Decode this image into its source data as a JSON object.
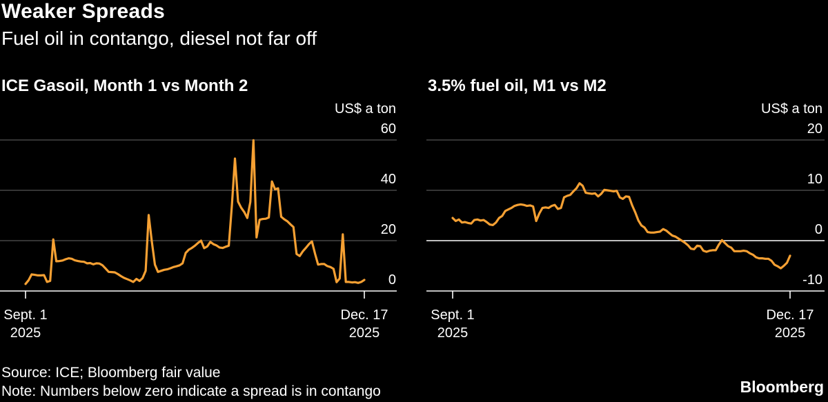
{
  "header": {
    "title": "Weaker Spreads",
    "subtitle": "Fuel oil in contango, diesel not far off"
  },
  "footer": {
    "source": "Source: ICE; Bloomberg fair value",
    "note": "Note: Numbers below zero indicate a spread is in contango",
    "brand": "Bloomberg"
  },
  "colors": {
    "line": "#f5a033",
    "grid": "#555555",
    "zero": "#ffffff",
    "background": "#000000"
  },
  "chart_data": [
    {
      "type": "line",
      "title": "ICE Gasoil, Month 1 vs Month 2",
      "ylabel": "US$ a ton",
      "ylim": [
        0,
        60
      ],
      "yticks": [
        0,
        20,
        40,
        60
      ],
      "x_labels": [
        {
          "line1": "Sept. 1",
          "line2": "2025"
        },
        {
          "line1": "Dec. 17",
          "line2": "2025"
        }
      ],
      "series": [
        {
          "values": [
            2.8,
            4.3,
            6.6,
            6.4,
            6.2,
            6.2,
            6.3,
            3.6,
            4.0,
            20.5,
            11.8,
            11.9,
            12.1,
            12.6,
            13.0,
            12.8,
            12.2,
            11.9,
            11.7,
            11.6,
            11.0,
            11.1,
            10.6,
            11.0,
            10.9,
            10.2,
            8.9,
            7.6,
            7.5,
            7.4,
            6.7,
            5.9,
            5.2,
            4.7,
            4.2,
            3.6,
            4.8,
            4.0,
            5.1,
            8.0,
            30.2,
            19.7,
            10.5,
            7.6,
            8.0,
            8.4,
            8.6,
            9.0,
            9.5,
            9.8,
            10.2,
            11.0,
            15.1,
            16.4,
            17.1,
            18.0,
            19.1,
            20.0,
            17.0,
            17.7,
            19.5,
            18.6,
            18.1,
            17.3,
            17.1,
            17.6,
            18.0,
            34.1,
            52.6,
            35.5,
            33.1,
            31.4,
            29.0,
            35.4,
            59.9,
            21.3,
            28.3,
            28.6,
            28.7,
            29.2,
            43.5,
            40.4,
            40.8,
            29.5,
            28.5,
            27.7,
            26.5,
            25.4,
            14.7,
            13.9,
            15.7,
            17.1,
            18.6,
            19.7,
            14.8,
            10.5,
            10.7,
            10.7,
            9.9,
            9.5,
            8.8,
            3.5,
            5.0,
            22.5,
            3.6,
            3.6,
            3.4,
            3.5,
            3.2,
            3.6,
            4.4
          ]
        }
      ]
    },
    {
      "type": "line",
      "title": "3.5% fuel oil, M1 vs M2",
      "ylabel": "US$ a ton",
      "ylim": [
        -10,
        20
      ],
      "yticks": [
        -10,
        0,
        10,
        20
      ],
      "x_labels": [
        {
          "line1": "Sept. 1",
          "line2": "2025"
        },
        {
          "line1": "Dec. 17",
          "line2": "2025"
        }
      ],
      "series": [
        {
          "values": [
            4.5,
            3.9,
            4.2,
            3.6,
            3.7,
            3.5,
            3.4,
            4.1,
            4.2,
            4.0,
            4.1,
            3.7,
            3.2,
            3.1,
            3.6,
            4.5,
            4.9,
            5.9,
            6.2,
            6.5,
            6.9,
            7.1,
            7.2,
            7.1,
            6.9,
            7.0,
            6.8,
            3.9,
            5.4,
            6.5,
            6.6,
            6.5,
            6.9,
            7.1,
            6.3,
            6.5,
            8.6,
            8.9,
            9.1,
            9.8,
            10.4,
            11.4,
            10.9,
            9.5,
            9.4,
            9.3,
            9.4,
            8.8,
            9.3,
            10.1,
            10.0,
            9.9,
            9.8,
            9.9,
            8.6,
            8.3,
            8.8,
            8.7,
            7.0,
            5.6,
            4.0,
            3.0,
            2.6,
            1.7,
            1.6,
            1.6,
            1.7,
            1.8,
            2.3,
            2.0,
            1.5,
            1.0,
            0.8,
            0.4,
            0.0,
            -0.4,
            -0.9,
            -1.6,
            -1.7,
            -1.0,
            -1.1,
            -2.0,
            -2.2,
            -2.0,
            -1.9,
            -1.9,
            -0.8,
            0.1,
            -0.5,
            -1.1,
            -1.4,
            -2.1,
            -2.1,
            -2.1,
            -2.0,
            -2.1,
            -2.5,
            -2.8,
            -3.3,
            -3.5,
            -3.5,
            -3.6,
            -3.6,
            -4.0,
            -4.8,
            -5.1,
            -5.5,
            -5.0,
            -4.4,
            -3.0
          ]
        }
      ]
    }
  ]
}
